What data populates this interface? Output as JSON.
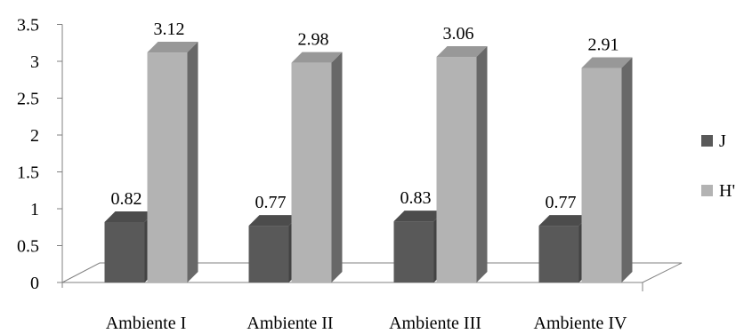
{
  "chart_data": {
    "type": "bar",
    "style": "3d-clustered-column",
    "categories": [
      "Ambiente I",
      "Ambiente II",
      "Ambiente III",
      "Ambiente IV"
    ],
    "series": [
      {
        "name": "J",
        "values": [
          0.82,
          0.77,
          0.83,
          0.77
        ],
        "color": "#595959"
      },
      {
        "name": "H'",
        "values": [
          3.12,
          2.98,
          3.06,
          2.91
        ],
        "color": "#b3b3b3"
      }
    ],
    "data_labels": {
      "J": [
        "0.82",
        "0.77",
        "0.83",
        "0.77"
      ],
      "H'": [
        "3.12",
        "2.98",
        "3.06",
        "2.91"
      ]
    },
    "y_ticks": [
      "0",
      "0.5",
      "1",
      "1.5",
      "2",
      "2.5",
      "3",
      "3.5"
    ],
    "ylim": [
      0,
      3.5
    ],
    "title": "",
    "xlabel": "",
    "ylabel": "",
    "grid": false,
    "legend_position": "right"
  }
}
